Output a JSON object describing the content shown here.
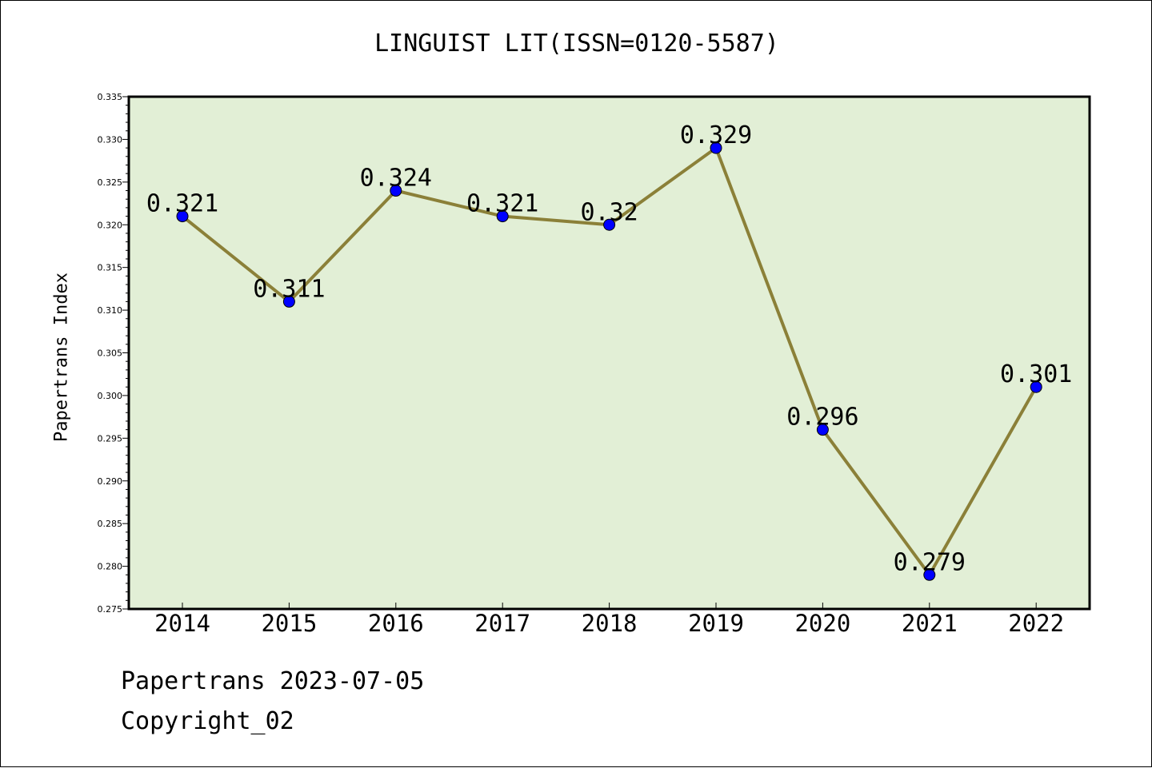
{
  "chart_data": {
    "type": "line",
    "title": "LINGUIST LIT(ISSN=0120-5587)",
    "xlabel": "",
    "ylabel": "Papertrans Index",
    "categories": [
      "2014",
      "2015",
      "2016",
      "2017",
      "2018",
      "2019",
      "2020",
      "2021",
      "2022"
    ],
    "series": [
      {
        "values": [
          0.321,
          0.311,
          0.324,
          0.321,
          0.32,
          0.329,
          0.296,
          0.279,
          0.301
        ],
        "data_labels": [
          "0.321",
          "0.311",
          "0.324",
          "0.321",
          "0.32",
          "0.329",
          "0.296",
          "0.279",
          "0.301"
        ]
      }
    ],
    "ylim": [
      0.275,
      0.335
    ],
    "yticks": [
      "0.275",
      "0.280",
      "0.285",
      "0.290",
      "0.295",
      "0.300",
      "0.305",
      "0.310",
      "0.315",
      "0.320",
      "0.325",
      "0.330",
      "0.335"
    ],
    "grid": false,
    "legend": "none",
    "colors": {
      "plot_background": "#e2efd6",
      "line": "#8b8038",
      "marker": "#0000ff"
    }
  },
  "footer": {
    "date_line": "Papertrans 2023-07-05",
    "copyright": "Copyright_02"
  }
}
